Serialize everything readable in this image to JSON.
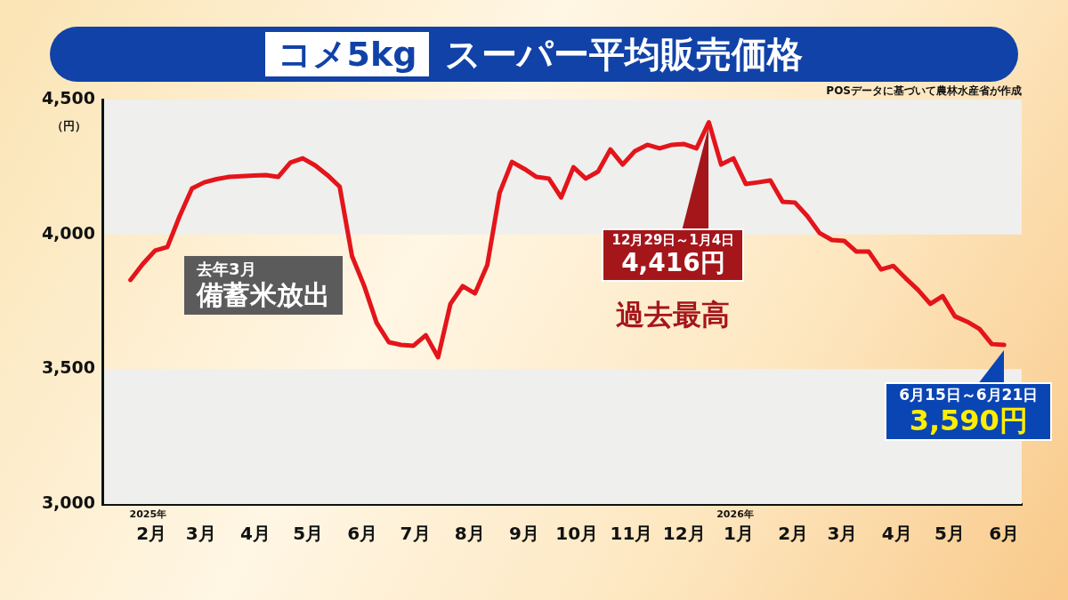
{
  "chart_data": {
    "type": "line",
    "title": "コメ5kg",
    "subtitle": "スーパー平均販売価格",
    "ylabel": "（円）",
    "x": [
      "2025-02-03",
      "2025-02-10",
      "2025-02-17",
      "2025-02-24",
      "2025-03-03",
      "2025-03-10",
      "2025-03-17",
      "2025-03-24",
      "2025-03-31",
      "2025-04-07",
      "2025-04-14",
      "2025-04-21",
      "2025-04-28",
      "2025-05-05",
      "2025-05-12",
      "2025-05-19",
      "2025-05-26",
      "2025-06-02",
      "2025-06-09",
      "2025-06-16",
      "2025-06-23",
      "2025-06-30",
      "2025-07-07",
      "2025-07-14",
      "2025-07-21",
      "2025-07-28",
      "2025-08-04",
      "2025-08-11",
      "2025-08-18",
      "2025-08-25",
      "2025-09-01",
      "2025-09-08",
      "2025-09-15",
      "2025-09-22",
      "2025-09-29",
      "2025-10-06",
      "2025-10-13",
      "2025-10-20",
      "2025-10-27",
      "2025-11-03",
      "2025-11-10",
      "2025-11-17",
      "2025-11-24",
      "2025-12-01",
      "2025-12-08",
      "2025-12-15",
      "2025-12-22",
      "2025-12-29",
      "2026-01-05",
      "2026-01-12",
      "2026-01-19",
      "2026-01-26",
      "2026-02-02",
      "2026-02-09",
      "2026-02-16",
      "2026-02-23",
      "2026-03-02",
      "2026-03-09",
      "2026-03-16",
      "2026-03-23",
      "2026-03-30",
      "2026-04-06",
      "2026-04-13",
      "2026-04-20",
      "2026-04-27",
      "2026-05-04",
      "2026-05-11",
      "2026-05-18",
      "2026-05-25",
      "2026-06-01",
      "2026-06-08",
      "2026-06-15"
    ],
    "series": [
      {
        "color": "#e3151b",
        "values": [
          3831,
          3890,
          3940,
          3953,
          4068,
          4170,
          4193,
          4205,
          4213,
          4216,
          4218,
          4220,
          4213,
          4266,
          4282,
          4256,
          4220,
          4177,
          3920,
          3808,
          3672,
          3600,
          3590,
          3587,
          3626,
          3544,
          3742,
          3808,
          3781,
          3887,
          4154,
          4269,
          4243,
          4213,
          4207,
          4137,
          4249,
          4207,
          4233,
          4315,
          4259,
          4309,
          4332,
          4319,
          4332,
          4335,
          4319,
          4416,
          4259,
          4282,
          4187,
          4193,
          4200,
          4121,
          4118,
          4068,
          4005,
          3979,
          3976,
          3936,
          3936,
          3870,
          3883,
          3837,
          3794,
          3742,
          3771,
          3696,
          3676,
          3649,
          3593,
          3590
        ]
      }
    ],
    "xlim": [
      "2025-01-18",
      "2026-06-25"
    ],
    "xticks": [
      {
        "value": "2025-02-15",
        "label": "2025年\n2月"
      },
      {
        "value": "2025-03-15",
        "label": "3月"
      },
      {
        "value": "2025-04-15",
        "label": "4月"
      },
      {
        "value": "2025-05-15",
        "label": "5月"
      },
      {
        "value": "2025-06-15",
        "label": "6月"
      },
      {
        "value": "2025-07-15",
        "label": "7月"
      },
      {
        "value": "2025-08-15",
        "label": "8月"
      },
      {
        "value": "2025-09-15",
        "label": "9月"
      },
      {
        "value": "2025-10-15",
        "label": "10月"
      },
      {
        "value": "2025-11-15",
        "label": "11月"
      },
      {
        "value": "2025-12-15",
        "label": "12月"
      },
      {
        "value": "2026-01-15",
        "label": "2026年\n1月"
      },
      {
        "value": "2026-02-15",
        "label": "2月"
      },
      {
        "value": "2026-03-15",
        "label": "3月"
      },
      {
        "value": "2026-04-15",
        "label": "4月"
      },
      {
        "value": "2026-05-15",
        "label": "5月"
      },
      {
        "value": "2026-06-15",
        "label": "6月"
      }
    ],
    "ylim": [
      3000,
      4500
    ],
    "yticks": [
      {
        "value": 3000,
        "label": "3,000"
      },
      {
        "value": 3500,
        "label": "3,500"
      },
      {
        "value": 4000,
        "label": "4,000"
      },
      {
        "value": 4500,
        "label": "4,500"
      }
    ],
    "bands": [
      {
        "axis": "y",
        "from": 3000,
        "to": 3500,
        "label": null,
        "color": "#efefed"
      },
      {
        "axis": "y",
        "from": 4000,
        "to": 4500,
        "label": null,
        "color": "#efefed"
      }
    ],
    "grid": false,
    "legend": false,
    "marker": "none",
    "line_style": "solid",
    "annotations": [
      "POSデータに基づいて農林水産省が作成",
      "去年3月",
      "備蓄米放出",
      "過去最高",
      {
        "text": "12月29日～1月4日",
        "x": "2025-12-29",
        "y": 4416
      },
      {
        "text": "4,416円",
        "x": "2025-12-29",
        "y": 4416
      },
      {
        "text": "6月15日～6月21日",
        "x": "2026-06-15",
        "y": 3590
      },
      {
        "text": "3,590円",
        "x": "2026-06-15",
        "y": 3590
      }
    ]
  }
}
